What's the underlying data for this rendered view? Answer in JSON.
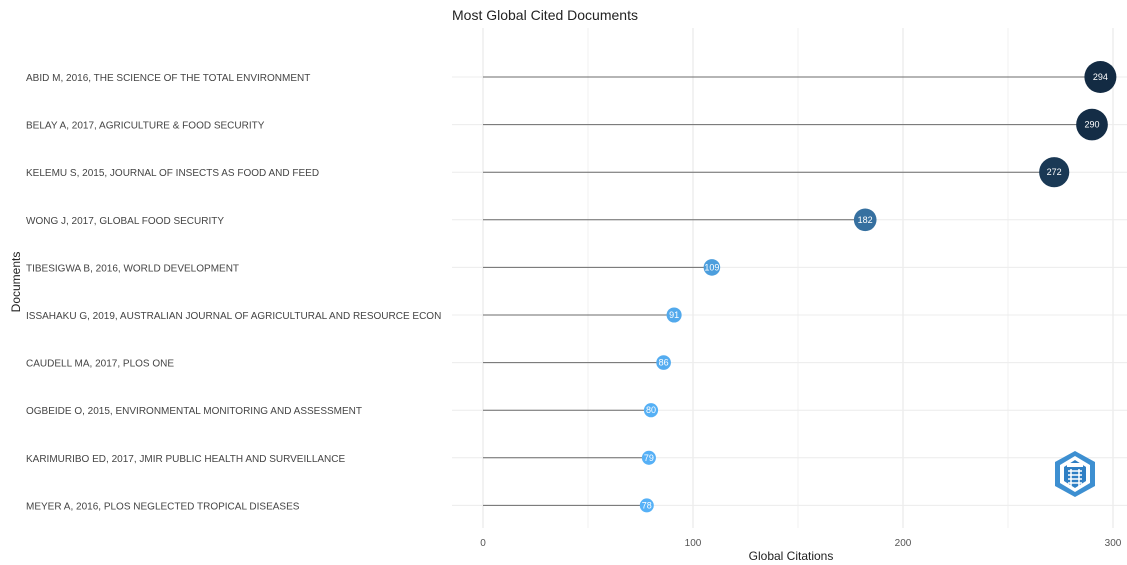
{
  "chart_data": {
    "type": "lollipop",
    "title": "Most Global Cited Documents",
    "xlabel": "Global Citations",
    "ylabel": "Documents",
    "xlim": [
      0,
      305
    ],
    "xticks": [
      0,
      100,
      200,
      300
    ],
    "grid": true,
    "color_scale": {
      "low": "#56b1f7",
      "high": "#132b43"
    },
    "categories": [
      "ABID M, 2016, THE SCIENCE OF THE TOTAL ENVIRONMENT",
      "BELAY A, 2017, AGRICULTURE & FOOD SECURITY",
      "KELEMU S, 2015, JOURNAL OF INSECTS AS FOOD AND FEED",
      "WONG J, 2017, GLOBAL FOOD SECURITY",
      "TIBESIGWA B, 2016, WORLD DEVELOPMENT",
      "ISSAHAKU G, 2019, AUSTRALIAN JOURNAL OF AGRICULTURAL AND RESOURCE ECON",
      "CAUDELL MA, 2017, PLOS ONE",
      "OGBEIDE O, 2015, ENVIRONMENTAL MONITORING AND ASSESSMENT",
      "KARIMURIBO ED, 2017, JMIR PUBLIC HEALTH AND SURVEILLANCE",
      "MEYER A, 2016, PLOS NEGLECTED TROPICAL DISEASES"
    ],
    "values": [
      294,
      290,
      272,
      182,
      109,
      91,
      86,
      80,
      79,
      78
    ]
  }
}
